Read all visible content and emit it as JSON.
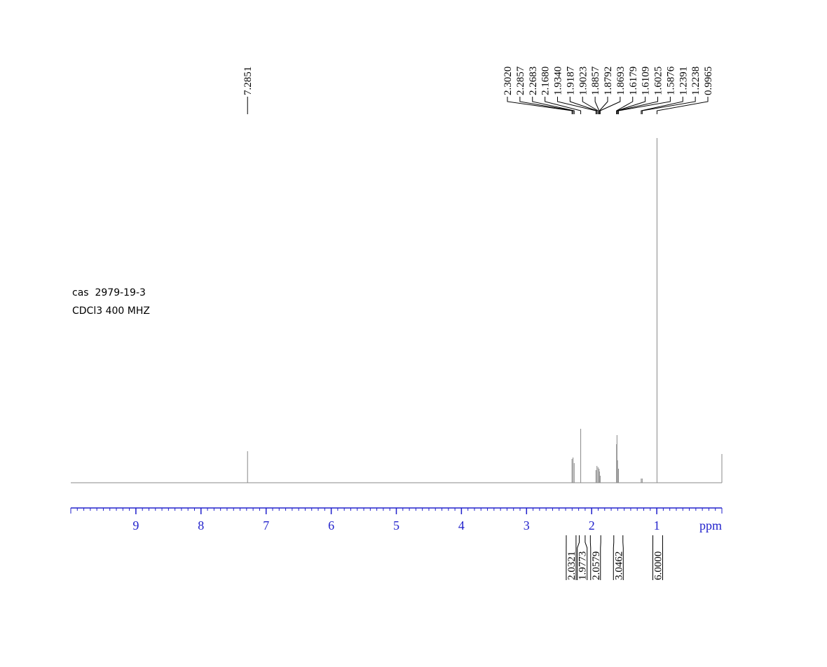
{
  "chart_data": {
    "type": "spectrum",
    "x": [
      7.2851,
      2.302,
      2.2857,
      2.2683,
      2.168,
      1.934,
      1.9187,
      1.9023,
      1.8857,
      1.8792,
      1.8693,
      1.6179,
      1.6109,
      1.6025,
      1.5876,
      1.2391,
      1.2238,
      0.9965,
      0
    ],
    "values": [
      45,
      34,
      36,
      28,
      77,
      18,
      24,
      22,
      20,
      16,
      10,
      55,
      68,
      32,
      20,
      6,
      6,
      492,
      41
    ],
    "peak_labels": [
      "7.2851",
      "2.3020",
      "2.2857",
      "2.2683",
      "2.1680",
      "1.9340",
      "1.9187",
      "1.9023",
      "1.8857",
      "1.8792",
      "1.8693",
      "1.6179",
      "1.6109",
      "1.6025",
      "1.5876",
      "1.2391",
      "1.2238",
      "0.9965"
    ],
    "integrals": [
      {
        "from": 2.39,
        "to": 2.24,
        "label": "2.0321"
      },
      {
        "from": 2.19,
        "to": 2.1,
        "label": "1.9773"
      },
      {
        "from": 2.02,
        "to": 1.86,
        "label": "2.0579"
      },
      {
        "from": 1.66,
        "to": 1.52,
        "label": "3.0462"
      },
      {
        "from": 1.06,
        "to": 0.91,
        "label": "6.0000"
      }
    ],
    "xlim": [
      10,
      0
    ],
    "ylim": [
      0,
      500
    ],
    "xticks": [
      1,
      2,
      3,
      4,
      5,
      6,
      7,
      8,
      9
    ],
    "x_label": "ppm",
    "color": "#888888",
    "axis_color": "#2222cc",
    "notes": [
      "cas  2979-19-3",
      "CDCl3 400 MHZ"
    ]
  }
}
